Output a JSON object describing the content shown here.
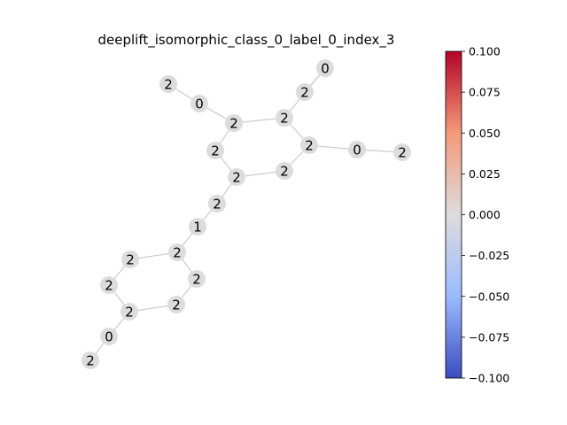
{
  "title": "deeplift_isomorphic_class_0_label_0_index_3",
  "graph": {
    "node_color": "#dddcdc",
    "edge_color": "#cccccc",
    "nodes": [
      {
        "id": "n0",
        "label": "2"
      },
      {
        "id": "n1",
        "label": "0"
      },
      {
        "id": "n2",
        "label": "2"
      },
      {
        "id": "n3",
        "label": "0"
      },
      {
        "id": "n4",
        "label": "2"
      },
      {
        "id": "n5",
        "label": "2"
      },
      {
        "id": "n6",
        "label": "2"
      },
      {
        "id": "n7",
        "label": "2"
      },
      {
        "id": "n8",
        "label": "0"
      },
      {
        "id": "n9",
        "label": "2"
      },
      {
        "id": "n10",
        "label": "2"
      },
      {
        "id": "n11",
        "label": "2"
      },
      {
        "id": "n12",
        "label": "2"
      },
      {
        "id": "n13",
        "label": "1"
      },
      {
        "id": "n14",
        "label": "2"
      },
      {
        "id": "n15",
        "label": "2"
      },
      {
        "id": "n16",
        "label": "2"
      },
      {
        "id": "n17",
        "label": "2"
      },
      {
        "id": "n18",
        "label": "2"
      },
      {
        "id": "n19",
        "label": "2"
      },
      {
        "id": "n20",
        "label": "0"
      },
      {
        "id": "n21",
        "label": "2"
      }
    ],
    "edges": [
      [
        "n0",
        "n1"
      ],
      [
        "n1",
        "n2"
      ],
      [
        "n2",
        "n5"
      ],
      [
        "n3",
        "n4"
      ],
      [
        "n3",
        "n5"
      ],
      [
        "n5",
        "n7"
      ],
      [
        "n7",
        "n8"
      ],
      [
        "n8",
        "n9"
      ],
      [
        "n7",
        "n10"
      ],
      [
        "n10",
        "n11"
      ],
      [
        "n11",
        "n6"
      ],
      [
        "n6",
        "n2"
      ],
      [
        "n11",
        "n12"
      ],
      [
        "n12",
        "n13"
      ],
      [
        "n13",
        "n14"
      ],
      [
        "n14",
        "n15"
      ],
      [
        "n14",
        "n16"
      ],
      [
        "n15",
        "n17"
      ],
      [
        "n17",
        "n18"
      ],
      [
        "n16",
        "n19"
      ],
      [
        "n19",
        "n18"
      ],
      [
        "n18",
        "n20"
      ],
      [
        "n20",
        "n21"
      ]
    ]
  },
  "colorbar": {
    "colormap": "coolwarm",
    "min": -0.1,
    "max": 0.1,
    "ticks": [
      "0.100",
      "0.075",
      "0.050",
      "0.025",
      "0.000",
      "−0.025",
      "−0.050",
      "−0.075",
      "−0.100"
    ],
    "tick_values": [
      0.1,
      0.075,
      0.05,
      0.025,
      0.0,
      -0.025,
      -0.05,
      -0.075,
      -0.1
    ],
    "colors": {
      "top": "#b40426",
      "upper_mid": "#f49a7b",
      "middle": "#dddcdc",
      "lower_mid": "#9abbff",
      "bottom": "#3b4cc0"
    }
  }
}
